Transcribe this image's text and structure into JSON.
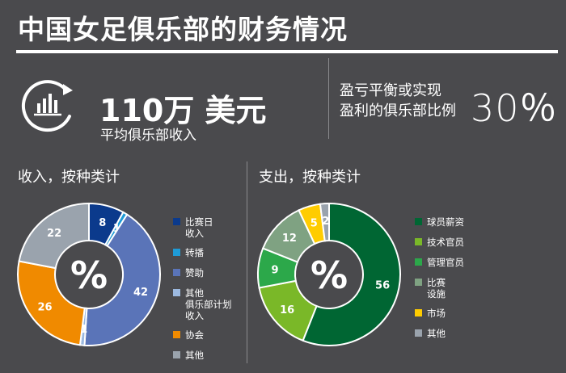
{
  "title": "中国女足俱乐部的财务情况",
  "summary": {
    "avg_income_value": "110万 美元",
    "avg_income_label": "平均俱乐部收入",
    "ratio_label_line1": "盈亏平衡或实现",
    "ratio_label_line2": "盈利的俱乐部比例",
    "ratio_value": "30％"
  },
  "icons": {
    "summary": "bar-chart-refresh-icon"
  },
  "chart_data": [
    {
      "type": "pie",
      "title": "收入，按种类计",
      "center_label": "%",
      "categories": [
        "比赛日\n收入",
        "转播",
        "赞助",
        "其他\n俱乐部计划\n收入",
        "协会",
        "其他"
      ],
      "values": [
        8,
        1,
        42,
        1,
        26,
        22
      ],
      "labels": [
        "8",
        "1",
        "42",
        "1",
        "26",
        "22"
      ],
      "colors": [
        "#0b3a8c",
        "#1e9bd7",
        "#5a74b8",
        "#9cb9e0",
        "#f08a00",
        "#9aa3ad"
      ],
      "start_angle": 0,
      "legend_position": "right"
    },
    {
      "type": "pie",
      "title": "支出，按种类计",
      "center_label": "%",
      "categories": [
        "球员薪资",
        "技术官员",
        "管理官员",
        "比赛\n设施",
        "市场",
        "其他"
      ],
      "values": [
        56,
        16,
        9,
        12,
        5,
        2
      ],
      "labels": [
        "56",
        "16",
        "9",
        "12",
        "5",
        "2"
      ],
      "colors": [
        "#006633",
        "#7ab828",
        "#2ca84a",
        "#7fa282",
        "#ffcc00",
        "#9aa3ad"
      ],
      "start_angle": 0,
      "legend_position": "right"
    }
  ]
}
